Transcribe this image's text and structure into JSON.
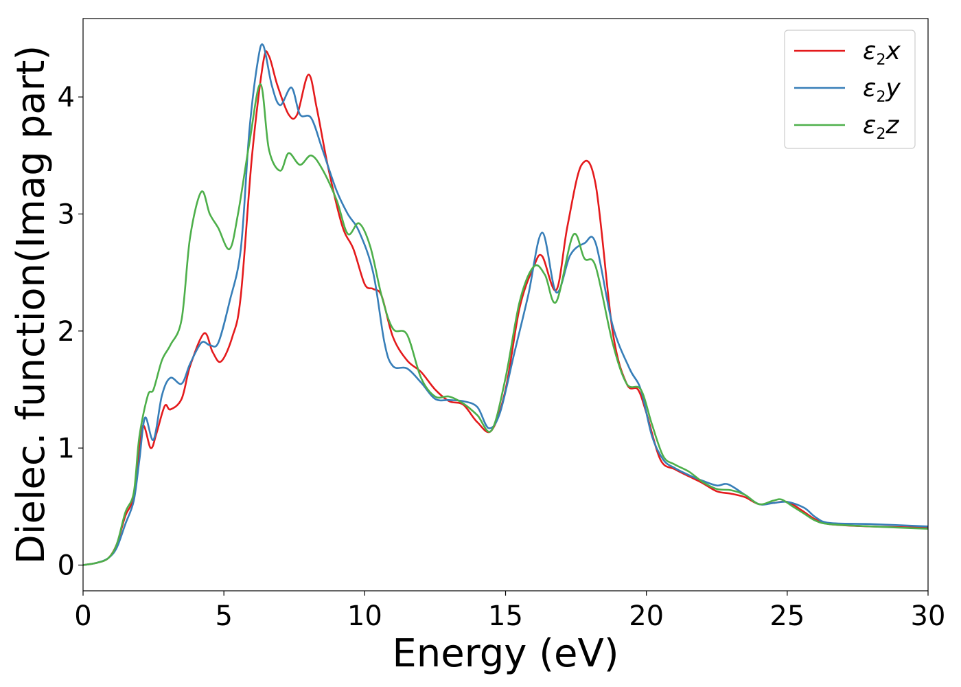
{
  "chart_data": {
    "type": "line",
    "xlabel": "Energy (eV)",
    "ylabel": "Dielec. function(Imag part)",
    "xlim": [
      0,
      30
    ],
    "ylim": [
      -0.22,
      4.67
    ],
    "xticks": [
      0,
      5,
      10,
      15,
      20,
      25,
      30
    ],
    "xtick_labels": [
      "0",
      "5",
      "10",
      "15",
      "20",
      "25",
      "30"
    ],
    "yticks": [
      0,
      1,
      2,
      3,
      4
    ],
    "ytick_labels": [
      "0",
      "1",
      "2",
      "3",
      "4"
    ],
    "grid": false,
    "legend_position": "top-right",
    "series": [
      {
        "name": "ε2x",
        "symbol": "ε",
        "subscript": "2",
        "axis": "x",
        "color": "#e41a1c",
        "points": [
          [
            0,
            0
          ],
          [
            0.5,
            0.02
          ],
          [
            0.9,
            0.06
          ],
          [
            1.2,
            0.18
          ],
          [
            1.5,
            0.42
          ],
          [
            1.8,
            0.6
          ],
          [
            2.1,
            1.18
          ],
          [
            2.4,
            1.0
          ],
          [
            2.6,
            1.12
          ],
          [
            2.9,
            1.36
          ],
          [
            3.1,
            1.33
          ],
          [
            3.5,
            1.42
          ],
          [
            3.8,
            1.7
          ],
          [
            4.3,
            1.98
          ],
          [
            4.6,
            1.82
          ],
          [
            4.9,
            1.74
          ],
          [
            5.3,
            1.95
          ],
          [
            5.6,
            2.3
          ],
          [
            6.0,
            3.5
          ],
          [
            6.4,
            4.3
          ],
          [
            6.6,
            4.35
          ],
          [
            6.9,
            4.1
          ],
          [
            7.3,
            3.85
          ],
          [
            7.6,
            3.85
          ],
          [
            8.0,
            4.19
          ],
          [
            8.3,
            3.9
          ],
          [
            8.7,
            3.4
          ],
          [
            9.2,
            2.9
          ],
          [
            9.6,
            2.7
          ],
          [
            10.0,
            2.4
          ],
          [
            10.3,
            2.36
          ],
          [
            10.6,
            2.3
          ],
          [
            11.0,
            1.95
          ],
          [
            11.5,
            1.75
          ],
          [
            12.0,
            1.65
          ],
          [
            12.5,
            1.5
          ],
          [
            13.0,
            1.4
          ],
          [
            13.5,
            1.37
          ],
          [
            14.0,
            1.22
          ],
          [
            14.5,
            1.15
          ],
          [
            15.0,
            1.5
          ],
          [
            15.5,
            2.2
          ],
          [
            16.0,
            2.55
          ],
          [
            16.3,
            2.64
          ],
          [
            16.8,
            2.35
          ],
          [
            17.2,
            2.9
          ],
          [
            17.7,
            3.42
          ],
          [
            18.2,
            3.25
          ],
          [
            18.8,
            2.0
          ],
          [
            19.3,
            1.55
          ],
          [
            19.7,
            1.5
          ],
          [
            20.0,
            1.3
          ],
          [
            20.5,
            0.9
          ],
          [
            21.0,
            0.82
          ],
          [
            21.5,
            0.76
          ],
          [
            22.0,
            0.7
          ],
          [
            22.5,
            0.63
          ],
          [
            23.0,
            0.61
          ],
          [
            23.5,
            0.58
          ],
          [
            24.0,
            0.52
          ],
          [
            24.5,
            0.53
          ],
          [
            25.0,
            0.54
          ],
          [
            25.5,
            0.47
          ],
          [
            26.0,
            0.39
          ],
          [
            26.5,
            0.35
          ],
          [
            28.0,
            0.33
          ],
          [
            30.0,
            0.32
          ]
        ]
      },
      {
        "name": "ε2y",
        "symbol": "ε",
        "subscript": "2",
        "axis": "y",
        "color": "#377eb8",
        "points": [
          [
            0,
            0
          ],
          [
            0.5,
            0.02
          ],
          [
            0.9,
            0.06
          ],
          [
            1.2,
            0.15
          ],
          [
            1.5,
            0.35
          ],
          [
            1.8,
            0.55
          ],
          [
            2.0,
            0.9
          ],
          [
            2.2,
            1.26
          ],
          [
            2.5,
            1.07
          ],
          [
            2.8,
            1.45
          ],
          [
            3.1,
            1.6
          ],
          [
            3.5,
            1.55
          ],
          [
            3.8,
            1.72
          ],
          [
            4.2,
            1.9
          ],
          [
            4.5,
            1.88
          ],
          [
            4.8,
            1.9
          ],
          [
            5.2,
            2.25
          ],
          [
            5.6,
            2.7
          ],
          [
            5.9,
            3.7
          ],
          [
            6.2,
            4.3
          ],
          [
            6.4,
            4.44
          ],
          [
            6.7,
            4.1
          ],
          [
            7.0,
            3.93
          ],
          [
            7.4,
            4.08
          ],
          [
            7.7,
            3.85
          ],
          [
            8.1,
            3.82
          ],
          [
            8.5,
            3.55
          ],
          [
            9.0,
            3.2
          ],
          [
            9.4,
            3.0
          ],
          [
            9.8,
            2.85
          ],
          [
            10.3,
            2.5
          ],
          [
            10.7,
            1.9
          ],
          [
            11.0,
            1.7
          ],
          [
            11.5,
            1.68
          ],
          [
            12.0,
            1.56
          ],
          [
            12.5,
            1.42
          ],
          [
            13.0,
            1.41
          ],
          [
            13.5,
            1.4
          ],
          [
            14.0,
            1.35
          ],
          [
            14.4,
            1.17
          ],
          [
            14.8,
            1.3
          ],
          [
            15.3,
            1.8
          ],
          [
            15.8,
            2.3
          ],
          [
            16.3,
            2.84
          ],
          [
            16.8,
            2.33
          ],
          [
            17.3,
            2.65
          ],
          [
            17.8,
            2.75
          ],
          [
            18.2,
            2.75
          ],
          [
            18.8,
            2.05
          ],
          [
            19.4,
            1.68
          ],
          [
            19.8,
            1.5
          ],
          [
            20.2,
            1.1
          ],
          [
            20.6,
            0.9
          ],
          [
            21.0,
            0.83
          ],
          [
            21.5,
            0.77
          ],
          [
            22.0,
            0.72
          ],
          [
            22.5,
            0.68
          ],
          [
            22.9,
            0.69
          ],
          [
            23.5,
            0.6
          ],
          [
            24.0,
            0.52
          ],
          [
            24.5,
            0.53
          ],
          [
            25.0,
            0.54
          ],
          [
            25.6,
            0.49
          ],
          [
            26.0,
            0.41
          ],
          [
            26.5,
            0.36
          ],
          [
            28.0,
            0.35
          ],
          [
            30.0,
            0.33
          ]
        ]
      },
      {
        "name": "ε2z",
        "symbol": "ε",
        "subscript": "2",
        "axis": "z",
        "color": "#4daf4a",
        "points": [
          [
            0,
            0
          ],
          [
            0.5,
            0.02
          ],
          [
            0.9,
            0.06
          ],
          [
            1.2,
            0.18
          ],
          [
            1.5,
            0.45
          ],
          [
            1.8,
            0.62
          ],
          [
            2.0,
            1.1
          ],
          [
            2.3,
            1.45
          ],
          [
            2.5,
            1.5
          ],
          [
            2.8,
            1.75
          ],
          [
            3.1,
            1.88
          ],
          [
            3.5,
            2.1
          ],
          [
            3.8,
            2.8
          ],
          [
            4.2,
            3.19
          ],
          [
            4.5,
            3.0
          ],
          [
            4.8,
            2.88
          ],
          [
            5.2,
            2.7
          ],
          [
            5.5,
            3.0
          ],
          [
            5.9,
            3.6
          ],
          [
            6.3,
            4.11
          ],
          [
            6.6,
            3.55
          ],
          [
            7.0,
            3.37
          ],
          [
            7.3,
            3.52
          ],
          [
            7.7,
            3.42
          ],
          [
            8.1,
            3.5
          ],
          [
            8.5,
            3.38
          ],
          [
            9.0,
            3.12
          ],
          [
            9.4,
            2.83
          ],
          [
            9.8,
            2.92
          ],
          [
            10.2,
            2.72
          ],
          [
            10.6,
            2.3
          ],
          [
            11.0,
            2.02
          ],
          [
            11.5,
            1.97
          ],
          [
            12.0,
            1.6
          ],
          [
            12.5,
            1.44
          ],
          [
            13.0,
            1.44
          ],
          [
            13.5,
            1.38
          ],
          [
            14.0,
            1.28
          ],
          [
            14.5,
            1.15
          ],
          [
            15.0,
            1.6
          ],
          [
            15.5,
            2.25
          ],
          [
            16.0,
            2.55
          ],
          [
            16.4,
            2.48
          ],
          [
            16.8,
            2.25
          ],
          [
            17.4,
            2.82
          ],
          [
            17.8,
            2.62
          ],
          [
            18.2,
            2.55
          ],
          [
            18.8,
            1.9
          ],
          [
            19.3,
            1.55
          ],
          [
            19.8,
            1.5
          ],
          [
            20.2,
            1.2
          ],
          [
            20.6,
            0.93
          ],
          [
            21.0,
            0.86
          ],
          [
            21.5,
            0.8
          ],
          [
            22.0,
            0.71
          ],
          [
            22.5,
            0.65
          ],
          [
            23.0,
            0.64
          ],
          [
            23.5,
            0.6
          ],
          [
            24.0,
            0.52
          ],
          [
            24.5,
            0.55
          ],
          [
            24.8,
            0.56
          ],
          [
            25.2,
            0.5
          ],
          [
            25.6,
            0.44
          ],
          [
            26.0,
            0.38
          ],
          [
            26.5,
            0.35
          ],
          [
            28.0,
            0.33
          ],
          [
            30.0,
            0.31
          ]
        ]
      }
    ]
  }
}
